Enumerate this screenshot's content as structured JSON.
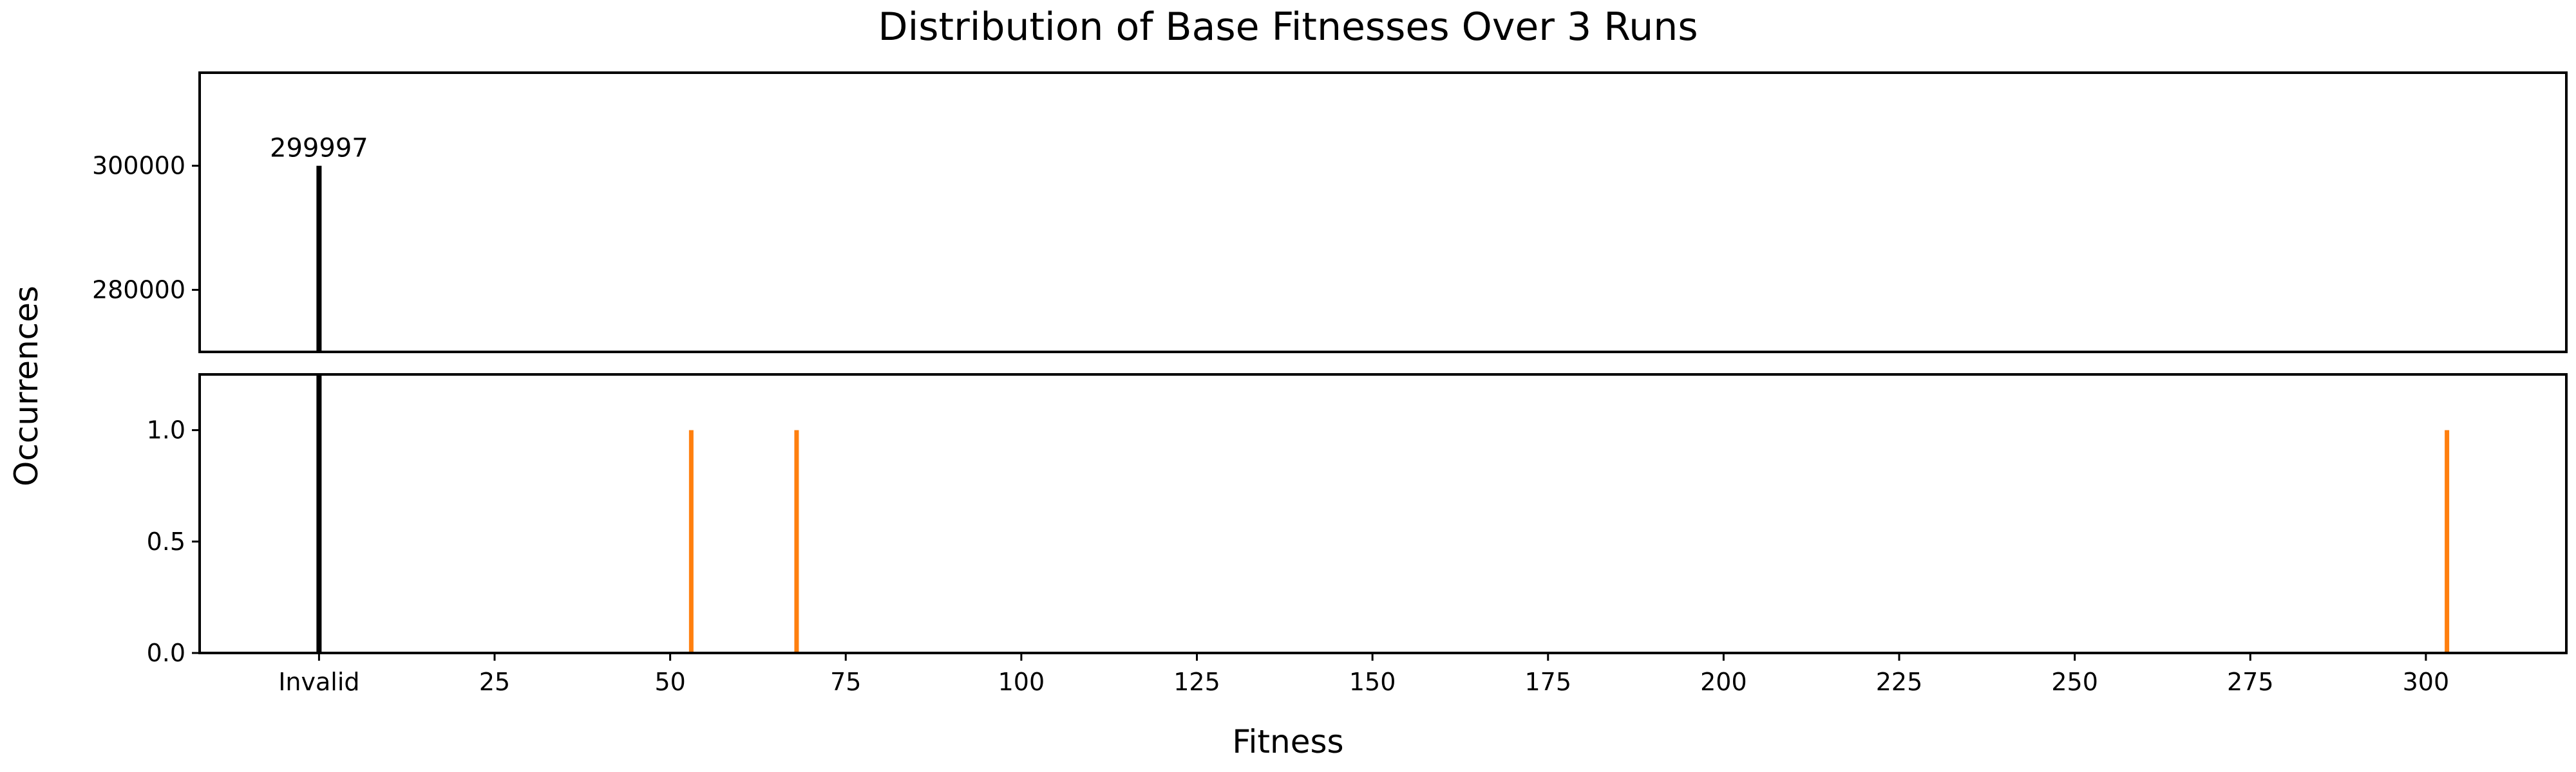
{
  "chart_data": {
    "type": "bar",
    "title": "Distribution of Base Fitnesses Over 3 Runs",
    "xlabel": "Fitness",
    "ylabel": "Occurrences",
    "grid": false,
    "broken_y_axis": true,
    "xlim": [
      -17,
      320
    ],
    "x_ticks": [
      {
        "value": 0,
        "label": "Invalid"
      },
      {
        "value": 25,
        "label": "25"
      },
      {
        "value": 50,
        "label": "50"
      },
      {
        "value": 75,
        "label": "75"
      },
      {
        "value": 100,
        "label": "100"
      },
      {
        "value": 125,
        "label": "125"
      },
      {
        "value": 150,
        "label": "150"
      },
      {
        "value": 175,
        "label": "175"
      },
      {
        "value": 200,
        "label": "200"
      },
      {
        "value": 225,
        "label": "225"
      },
      {
        "value": 250,
        "label": "250"
      },
      {
        "value": 275,
        "label": "275"
      },
      {
        "value": 300,
        "label": "300"
      }
    ],
    "panels": [
      {
        "name": "upper",
        "ylim": [
          270000,
          315000
        ],
        "y_ticks": [
          {
            "value": 280000,
            "label": "280000"
          },
          {
            "value": 300000,
            "label": "300000"
          }
        ]
      },
      {
        "name": "lower",
        "ylim": [
          0,
          1.25
        ],
        "y_ticks": [
          {
            "value": 0,
            "label": "0.0"
          },
          {
            "value": 0.5,
            "label": "0.5"
          },
          {
            "value": 1,
            "label": "1.0"
          }
        ]
      }
    ],
    "bars": [
      {
        "x": 0,
        "value": 299997,
        "color": "#000000",
        "label": "299997"
      },
      {
        "x": 53,
        "value": 1,
        "color": "#ff7f0e"
      },
      {
        "x": 68,
        "value": 1,
        "color": "#ff7f0e"
      },
      {
        "x": 303,
        "value": 1,
        "color": "#ff7f0e"
      }
    ]
  }
}
